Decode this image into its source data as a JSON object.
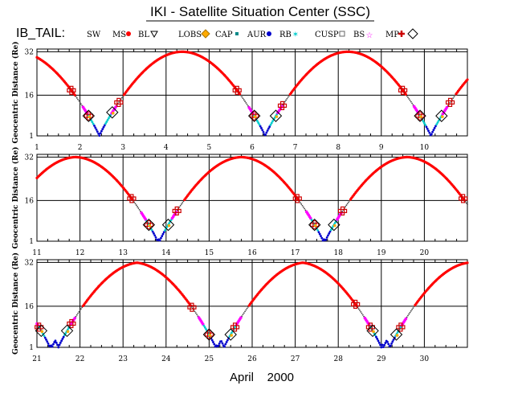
{
  "header": {
    "title": "IKI - Satellite Situation Center (SSC)",
    "mission": "IB_TAIL:"
  },
  "legend": [
    {
      "label": "SW",
      "marker": "none"
    },
    {
      "label": "MS",
      "marker": "red-dot"
    },
    {
      "label": "BL",
      "marker": "triangle-down"
    },
    {
      "label": "LOBS",
      "marker": "orange-diamond"
    },
    {
      "label": "CAP",
      "marker": "teal-square"
    },
    {
      "label": "AUR",
      "marker": "blue-dot"
    },
    {
      "label": "RB",
      "marker": "cyan-star"
    },
    {
      "label": "CUSP",
      "marker": "gray-square"
    },
    {
      "label": "BS",
      "marker": "magenta-star"
    },
    {
      "label": "MP",
      "marker": "red-cross-diamond"
    }
  ],
  "colors": {
    "ms": "#ff0000",
    "aur": "#0000cc",
    "rb": "#00cccc",
    "bs": "#ff00ff",
    "lobs": "#ffaa00",
    "cap": "#008888",
    "mp": "#cc0000",
    "grid": "#000000",
    "title": "#000000"
  },
  "chart_data": {
    "type": "scatter",
    "title": "IKI - Satellite Situation Center (SSC)",
    "xlabel": "April    2000",
    "ylabel": "Geocentric Distance (Re)",
    "ylim": [
      1,
      33
    ],
    "yticks": [
      1,
      16,
      32
    ],
    "orbit_period_days": 3.85,
    "apogee_re": 32,
    "panels": [
      {
        "xlim": [
          1,
          11
        ],
        "xticks": [
          "1",
          "2",
          "3",
          "4",
          "5",
          "6",
          "7",
          "8",
          "9",
          "10"
        ],
        "perigees": [
          2.45,
          6.3,
          10.15
        ],
        "mp_crossings": [
          1.8,
          2.2,
          2.9,
          5.65,
          6.05,
          6.7,
          9.5,
          9.9,
          10.6
        ],
        "lobs_points": [
          2.2,
          2.75,
          6.05,
          6.55,
          9.9,
          10.4
        ]
      },
      {
        "xlim": [
          11,
          21
        ],
        "xticks": [
          "11",
          "12",
          "13",
          "14",
          "15",
          "16",
          "17",
          "18",
          "19",
          "20"
        ],
        "perigees": [
          13.85,
          17.65
        ],
        "mp_crossings": [
          13.2,
          13.6,
          14.25,
          17.05,
          17.45,
          18.1,
          20.9
        ],
        "lobs_points": [
          13.6,
          14.05,
          17.45,
          17.9
        ]
      },
      {
        "xlim": [
          21,
          31
        ],
        "xticks": [
          "21",
          "22",
          "23",
          "24",
          "25",
          "26",
          "27",
          "28",
          "29",
          "30"
        ],
        "perigees": [
          21.5,
          25.2,
          29.0
        ],
        "mp_crossings": [
          21.05,
          21.8,
          24.6,
          25.0,
          25.6,
          28.4,
          28.75,
          29.45
        ],
        "lobs_points": [
          21.1,
          21.7,
          25.0,
          25.5,
          28.8,
          29.35
        ]
      }
    ]
  }
}
